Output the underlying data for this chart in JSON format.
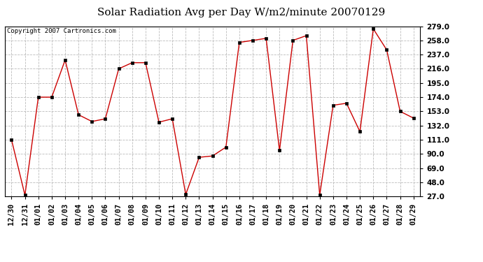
{
  "title": "Solar Radiation Avg per Day W/m2/minute 20070129",
  "copyright": "Copyright 2007 Cartronics.com",
  "x_labels": [
    "12/30",
    "12/31",
    "01/01",
    "01/02",
    "01/03",
    "01/04",
    "01/05",
    "01/06",
    "01/07",
    "01/08",
    "01/09",
    "01/10",
    "01/11",
    "01/12",
    "01/13",
    "01/14",
    "01/15",
    "01/16",
    "01/17",
    "01/18",
    "01/19",
    "01/20",
    "01/21",
    "01/22",
    "01/23",
    "01/24",
    "01/25",
    "01/26",
    "01/27",
    "01/28",
    "01/29"
  ],
  "y_values": [
    111,
    29,
    174,
    174,
    229,
    148,
    138,
    142,
    216,
    225,
    225,
    137,
    142,
    30,
    85,
    87,
    100,
    255,
    258,
    261,
    95,
    258,
    265,
    29,
    162,
    165,
    123,
    275,
    244,
    153,
    143
  ],
  "y_min": 27.0,
  "y_max": 279.0,
  "y_ticks": [
    27.0,
    48.0,
    69.0,
    90.0,
    111.0,
    132.0,
    153.0,
    174.0,
    195.0,
    216.0,
    237.0,
    258.0,
    279.0
  ],
  "line_color": "#cc0000",
  "marker": "s",
  "marker_size": 2.5,
  "bg_color": "#ffffff",
  "grid_color": "#aaaaaa",
  "title_fontsize": 11,
  "tick_fontsize": 7.5,
  "copyright_fontsize": 6.5
}
